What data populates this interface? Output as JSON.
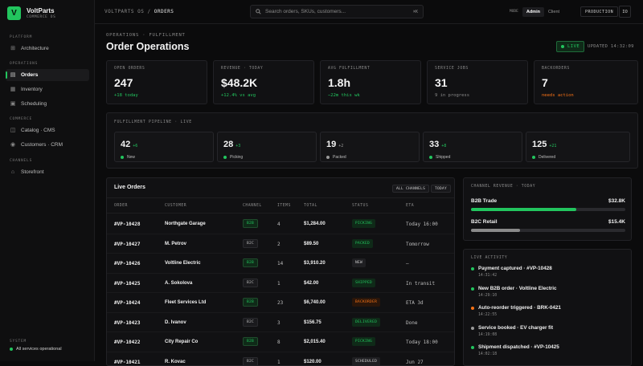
{
  "brand": {
    "initial": "V",
    "name": "VoltParts",
    "sub": "COMMERCE OS"
  },
  "sidebar": {
    "sections": [
      {
        "label": "PLATFORM",
        "items": [
          {
            "label": "Architecture",
            "icon": "architecture-icon"
          }
        ]
      },
      {
        "label": "OPERATIONS",
        "items": [
          {
            "label": "Orders",
            "icon": "orders-icon",
            "active": true
          },
          {
            "label": "Inventory",
            "icon": "inventory-icon"
          },
          {
            "label": "Scheduling",
            "icon": "calendar-icon"
          }
        ]
      },
      {
        "label": "COMMERCE",
        "items": [
          {
            "label": "Catalog · CMS",
            "icon": "catalog-icon"
          },
          {
            "label": "Customers · CRM",
            "icon": "customers-icon"
          }
        ]
      },
      {
        "label": "CHANNELS",
        "items": [
          {
            "label": "Storefront",
            "icon": "storefront-icon"
          }
        ]
      }
    ],
    "system_label": "SYSTEM",
    "system_status": "All services operational"
  },
  "topbar": {
    "crumb_root": "VOLTPARTS OS",
    "crumb_sep": "/",
    "crumb_current": "ORDERS",
    "search_placeholder": "Search orders, SKUs, customers...",
    "search_kbd": "⌘K",
    "view_label": "MODE",
    "view_options": [
      "Admin",
      "Client"
    ],
    "view_selected": "Admin",
    "env": "PRODUCTION",
    "user_initials": "IO"
  },
  "page": {
    "crumb": "OPERATIONS · FULFILLMENT",
    "title": "Order Operations",
    "live": "LIVE",
    "updated": "UPDATED 14:32:09"
  },
  "kpis": [
    {
      "label": "OPEN ORDERS",
      "value": "247",
      "sub": "+18 today",
      "tone": "green"
    },
    {
      "label": "REVENUE · TODAY",
      "value": "$48.2K",
      "sub": "+12.4% vs avg",
      "tone": "green"
    },
    {
      "label": "AVG FULFILLMENT",
      "value": "1.8h",
      "sub": "−22m this wk",
      "tone": "green"
    },
    {
      "label": "SERVICE JOBS",
      "value": "31",
      "sub": "9 in progress",
      "tone": "grey"
    },
    {
      "label": "BACKORDERS",
      "value": "7",
      "sub": "needs action",
      "tone": "orange"
    }
  ],
  "pipeline": {
    "title": "FULFILLMENT PIPELINE · LIVE",
    "stages": [
      {
        "value": "42",
        "delta": "+6",
        "name": "New",
        "color": "#22c55e"
      },
      {
        "value": "28",
        "delta": "+3",
        "name": "Picking",
        "color": "#22c55e"
      },
      {
        "value": "19",
        "delta": "+2",
        "name": "Packed",
        "color": "#9a9a9a"
      },
      {
        "value": "33",
        "delta": "+8",
        "name": "Shipped",
        "color": "#22c55e"
      },
      {
        "value": "125",
        "delta": "+21",
        "name": "Delivered",
        "color": "#22c55e"
      }
    ]
  },
  "orders": {
    "title": "Live Orders",
    "filters": [
      "ALL CHANNELS",
      "TODAY"
    ],
    "columns": [
      "ORDER",
      "CUSTOMER",
      "CHANNEL",
      "ITEMS",
      "TOTAL",
      "STATUS",
      "ETA"
    ],
    "rows": [
      {
        "order": "#VP-10428",
        "customer": "Northgate Garage",
        "channel": "B2B",
        "items": "4",
        "total": "$1,284.00",
        "status": "PICKING",
        "eta": "Today 16:00"
      },
      {
        "order": "#VP-10427",
        "customer": "M. Petrov",
        "channel": "B2C",
        "items": "2",
        "total": "$89.50",
        "status": "PACKED",
        "eta": "Tomorrow"
      },
      {
        "order": "#VP-10426",
        "customer": "Voltline Electric",
        "channel": "B2B",
        "items": "14",
        "total": "$3,910.20",
        "status": "NEW",
        "eta": "—"
      },
      {
        "order": "#VP-10425",
        "customer": "A. Sokolova",
        "channel": "B2C",
        "items": "1",
        "total": "$42.00",
        "status": "SHIPPED",
        "eta": "In transit"
      },
      {
        "order": "#VP-10424",
        "customer": "Fleet Services Ltd",
        "channel": "B2B",
        "items": "23",
        "total": "$6,740.00",
        "status": "BACKORDER",
        "eta": "ETA 3d"
      },
      {
        "order": "#VP-10423",
        "customer": "D. Ivanov",
        "channel": "B2C",
        "items": "3",
        "total": "$156.75",
        "status": "DELIVERED",
        "eta": "Done"
      },
      {
        "order": "#VP-10422",
        "customer": "City Repair Co",
        "channel": "B2B",
        "items": "8",
        "total": "$2,015.40",
        "status": "PICKING",
        "eta": "Today 18:00"
      },
      {
        "order": "#VP-10421",
        "customer": "R. Kovac",
        "channel": "B2C",
        "items": "1",
        "total": "$120.00",
        "status": "SCHEDULED",
        "eta": "Jun 27"
      }
    ]
  },
  "channel_revenue": {
    "title": "CHANNEL REVENUE · TODAY",
    "items": [
      {
        "name": "B2B Trade",
        "value": "$32.8K",
        "share": 0.68,
        "color": "#22c55e"
      },
      {
        "name": "B2C Retail",
        "value": "$15.4K",
        "share": 0.32,
        "color": "#8a8a8a"
      }
    ]
  },
  "activity": {
    "title": "LIVE ACTIVITY",
    "items": [
      {
        "text": "Payment captured · #VP-10428",
        "time": "14:31:42",
        "color": "#22c55e"
      },
      {
        "text": "New B2B order · Voltline Electric",
        "time": "14:29:10",
        "color": "#22c55e"
      },
      {
        "text": "Auto-reorder triggered · BRK-0421",
        "time": "14:22:55",
        "color": "#f97316"
      },
      {
        "text": "Service booked · EV charger fit",
        "time": "14:19:08",
        "color": "#9a9a9a"
      },
      {
        "text": "Shipment dispatched · #VP-10425",
        "time": "14:02:18",
        "color": "#22c55e"
      }
    ]
  }
}
